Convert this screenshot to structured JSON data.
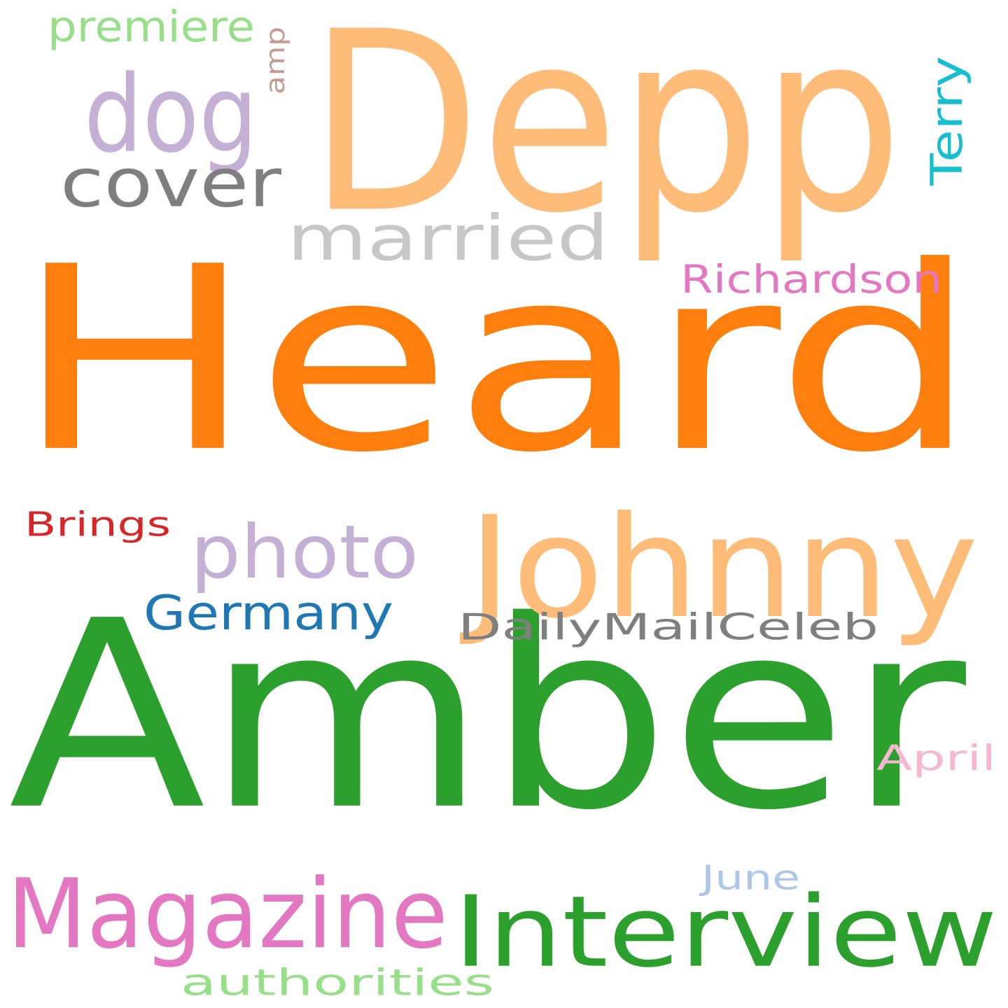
{
  "words": [
    {
      "text": "Heard",
      "color": "#ff7f0e",
      "orientation": "horizontal"
    },
    {
      "text": "Amber",
      "color": "#2ca02c",
      "orientation": "horizontal"
    },
    {
      "text": "Depp",
      "color": "#ffbb78",
      "orientation": "horizontal"
    },
    {
      "text": "Johnny",
      "color": "#ffbb78",
      "orientation": "horizontal"
    },
    {
      "text": "Interview",
      "color": "#2ca02c",
      "orientation": "horizontal"
    },
    {
      "text": "Magazine",
      "color": "#e377c2",
      "orientation": "horizontal"
    },
    {
      "text": "dog",
      "color": "#c5b0d5",
      "orientation": "horizontal"
    },
    {
      "text": "photo",
      "color": "#c5b0d5",
      "orientation": "horizontal"
    },
    {
      "text": "married",
      "color": "#c7c7c7",
      "orientation": "horizontal"
    },
    {
      "text": "cover",
      "color": "#7f7f7f",
      "orientation": "horizontal"
    },
    {
      "text": "Germany",
      "color": "#1f77b4",
      "orientation": "horizontal"
    },
    {
      "text": "DailyMailCeleb",
      "color": "#7f7f7f",
      "orientation": "horizontal"
    },
    {
      "text": "authorities",
      "color": "#98df8a",
      "orientation": "horizontal"
    },
    {
      "text": "Richardson",
      "color": "#e377c2",
      "orientation": "horizontal"
    },
    {
      "text": "Brings",
      "color": "#d62728",
      "orientation": "horizontal"
    },
    {
      "text": "premiere",
      "color": "#98df8a",
      "orientation": "horizontal"
    },
    {
      "text": "Terry",
      "color": "#17becf",
      "orientation": "vertical"
    },
    {
      "text": "April",
      "color": "#f7b6d2",
      "orientation": "horizontal"
    },
    {
      "text": "June",
      "color": "#aec7e8",
      "orientation": "horizontal"
    },
    {
      "text": "amp",
      "color": "#c49c94",
      "orientation": "vertical"
    }
  ]
}
